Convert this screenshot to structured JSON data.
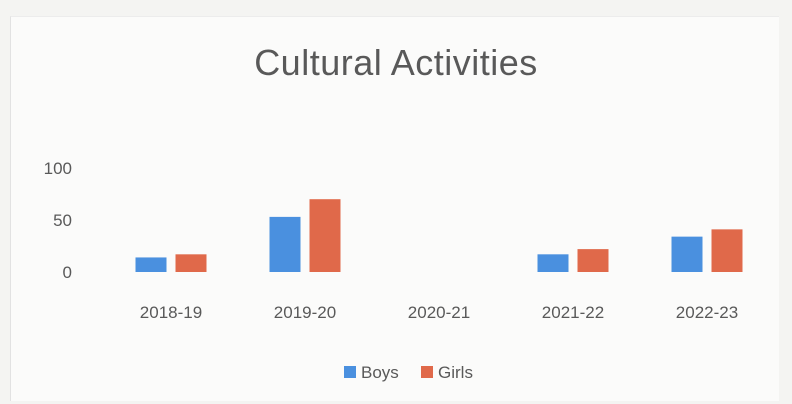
{
  "chart_data": {
    "type": "bar",
    "title": "Cultural Activities",
    "categories": [
      "2018-19",
      "2019-20",
      "2020-21",
      "2021-22",
      "2022-23"
    ],
    "series": [
      {
        "name": "Boys",
        "values": [
          14,
          53,
          0,
          17,
          34
        ]
      },
      {
        "name": "Girls",
        "values": [
          17,
          70,
          0,
          22,
          41
        ]
      }
    ],
    "y_ticks": [
      "100",
      "50",
      "0"
    ],
    "ylim": [
      0,
      100
    ],
    "grid": false,
    "legend_position": "bottom",
    "colors": {
      "Boys": "#4a90df",
      "Girls": "#e0694a"
    }
  }
}
